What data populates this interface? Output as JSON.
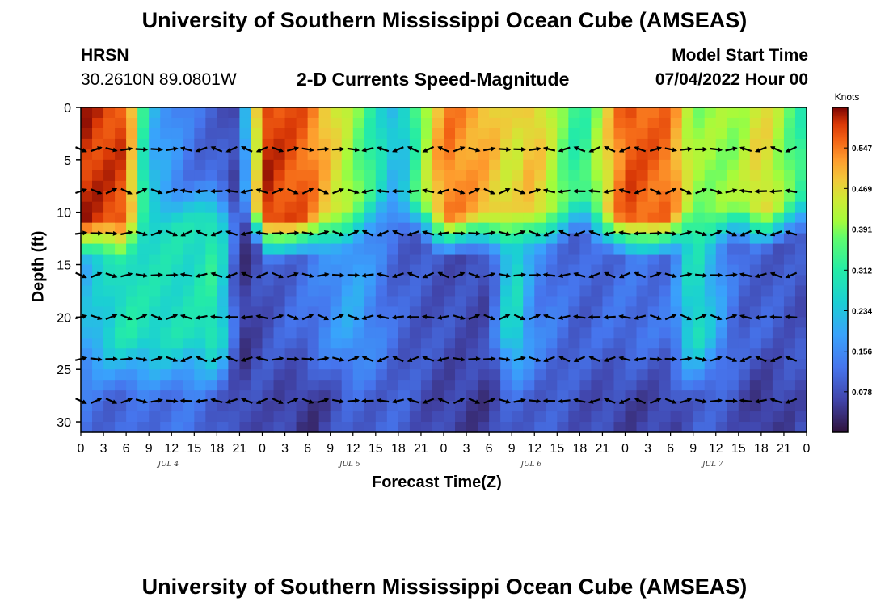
{
  "header": {
    "title": "University of Southern Mississippi Ocean Cube (AMSEAS)",
    "station": "HRSN",
    "location": "30.2610N  89.0801W",
    "plot_title": "2-D Currents Speed-Magnitude",
    "model_label": "Model Start Time",
    "model_time": "07/04/2022 Hour 00"
  },
  "footer": {
    "title": "University of Southern Mississippi Ocean Cube (AMSEAS)"
  },
  "chart_data": {
    "type": "heatmap",
    "title": "2-D Currents Speed-Magnitude",
    "xlabel": "Forecast Time(Z)",
    "ylabel": "Depth (ft)",
    "x_hours_range": [
      0,
      96
    ],
    "x_tick_labels": [
      "0",
      "3",
      "6",
      "9",
      "12",
      "15",
      "18",
      "21",
      "0",
      "3",
      "6",
      "9",
      "12",
      "15",
      "18",
      "21",
      "0",
      "3",
      "6",
      "9",
      "12",
      "15",
      "18",
      "21",
      "0",
      "3",
      "6",
      "9",
      "12",
      "15",
      "18",
      "21",
      "0"
    ],
    "date_labels": [
      {
        "label": "JUL 4",
        "hour": 12
      },
      {
        "label": "JUL 5",
        "hour": 36
      },
      {
        "label": "JUL 6",
        "hour": 60
      },
      {
        "label": "JUL 7",
        "hour": 84
      }
    ],
    "ylim": [
      0,
      31
    ],
    "y_ticks": [
      0,
      5,
      10,
      15,
      20,
      25,
      30
    ],
    "arrow_depths": [
      4,
      8,
      12,
      16,
      20,
      24,
      28
    ],
    "colorbar": {
      "unit_label": "Knots",
      "ticks": [
        "0.547",
        "0.469",
        "0.391",
        "0.312",
        "0.234",
        "0.156",
        "0.078"
      ],
      "range": [
        0,
        0.625
      ]
    },
    "speed_profile_by_hour": [
      {
        "hour": 0,
        "surface": 0.6,
        "mid": 0.2,
        "bottom": 0.12
      },
      {
        "hour": 6,
        "surface": 0.58,
        "mid": 0.3,
        "bottom": 0.1
      },
      {
        "hour": 9,
        "surface": 0.22,
        "mid": 0.28,
        "bottom": 0.12
      },
      {
        "hour": 15,
        "surface": 0.12,
        "mid": 0.28,
        "bottom": 0.12
      },
      {
        "hour": 18,
        "surface": 0.1,
        "mid": 0.32,
        "bottom": 0.1
      },
      {
        "hour": 21,
        "surface": 0.06,
        "mid": 0.04,
        "bottom": 0.06
      },
      {
        "hour": 24,
        "surface": 0.6,
        "mid": 0.08,
        "bottom": 0.08
      },
      {
        "hour": 30,
        "surface": 0.56,
        "mid": 0.12,
        "bottom": 0.04
      },
      {
        "hour": 36,
        "surface": 0.4,
        "mid": 0.2,
        "bottom": 0.1
      },
      {
        "hour": 42,
        "surface": 0.2,
        "mid": 0.1,
        "bottom": 0.1
      },
      {
        "hour": 48,
        "surface": 0.55,
        "mid": 0.08,
        "bottom": 0.06
      },
      {
        "hour": 54,
        "surface": 0.5,
        "mid": 0.07,
        "bottom": 0.05
      },
      {
        "hour": 57,
        "surface": 0.45,
        "mid": 0.3,
        "bottom": 0.1
      },
      {
        "hour": 60,
        "surface": 0.5,
        "mid": 0.15,
        "bottom": 0.1
      },
      {
        "hour": 66,
        "surface": 0.3,
        "mid": 0.1,
        "bottom": 0.08
      },
      {
        "hour": 72,
        "surface": 0.58,
        "mid": 0.12,
        "bottom": 0.06
      },
      {
        "hour": 78,
        "surface": 0.55,
        "mid": 0.12,
        "bottom": 0.06
      },
      {
        "hour": 81,
        "surface": 0.4,
        "mid": 0.3,
        "bottom": 0.1
      },
      {
        "hour": 87,
        "surface": 0.4,
        "mid": 0.1,
        "bottom": 0.08
      },
      {
        "hour": 90,
        "surface": 0.48,
        "mid": 0.1,
        "bottom": 0.04
      },
      {
        "hour": 96,
        "surface": 0.3,
        "mid": 0.08,
        "bottom": 0.08
      }
    ]
  }
}
